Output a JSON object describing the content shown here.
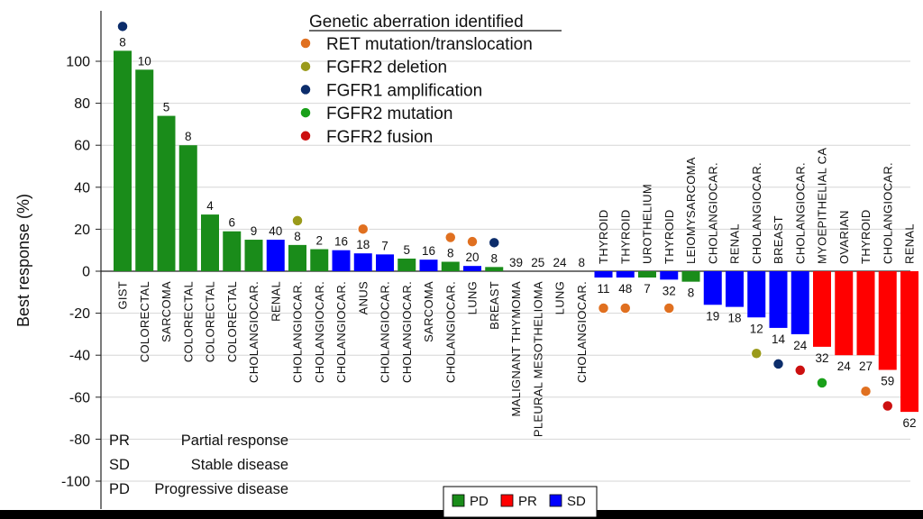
{
  "chart_data": {
    "type": "bar",
    "title": "",
    "xlabel": "",
    "ylabel": "Best response (%)",
    "ylim": [
      -110,
      115
    ],
    "yticks": [
      100,
      80,
      60,
      40,
      20,
      0,
      -20,
      -40,
      -60,
      -80,
      -100
    ],
    "grid": true,
    "colors": {
      "PD": "#1a8c1a",
      "PR": "#ff0000",
      "SD": "#0000ff"
    },
    "bars": [
      {
        "label": "GIST",
        "value": 105,
        "status": "PD",
        "count": "8",
        "marker": "fgfr1_amp"
      },
      {
        "label": "COLORECTAL",
        "value": 96,
        "status": "PD",
        "count": "10",
        "marker": ""
      },
      {
        "label": "SARCOMA",
        "value": 74,
        "status": "PD",
        "count": "5",
        "marker": ""
      },
      {
        "label": "COLORECTAL",
        "value": 60,
        "status": "PD",
        "count": "8",
        "marker": ""
      },
      {
        "label": "COLORECTAL",
        "value": 27,
        "status": "PD",
        "count": "4",
        "marker": ""
      },
      {
        "label": "COLORECTAL",
        "value": 19,
        "status": "PD",
        "count": "6",
        "marker": ""
      },
      {
        "label": "CHOLANGIOCAR.",
        "value": 15,
        "status": "PD",
        "count": "9",
        "marker": ""
      },
      {
        "label": "RENAL",
        "value": 15,
        "status": "SD",
        "count": "40",
        "marker": ""
      },
      {
        "label": "CHOLANGIOCAR.",
        "value": 12.5,
        "status": "PD",
        "count": "8",
        "marker": "fgfr2_del"
      },
      {
        "label": "CHOLANGIOCAR.",
        "value": 10.5,
        "status": "PD",
        "count": "2",
        "marker": ""
      },
      {
        "label": "CHOLANGIOCAR.",
        "value": 10,
        "status": "SD",
        "count": "16",
        "marker": ""
      },
      {
        "label": "ANUS",
        "value": 8.5,
        "status": "SD",
        "count": "18",
        "marker": "ret"
      },
      {
        "label": "CHOLANGIOCAR.",
        "value": 8,
        "status": "SD",
        "count": "7",
        "marker": ""
      },
      {
        "label": "CHOLANGIOCAR.",
        "value": 6,
        "status": "PD",
        "count": "5",
        "marker": ""
      },
      {
        "label": "SARCOMA",
        "value": 5.5,
        "status": "SD",
        "count": "16",
        "marker": ""
      },
      {
        "label": "CHOLANGIOCAR.",
        "value": 4.5,
        "status": "PD",
        "count": "8",
        "marker": "ret"
      },
      {
        "label": "LUNG",
        "value": 2.5,
        "status": "SD",
        "count": "20",
        "marker": "ret"
      },
      {
        "label": "BREAST",
        "value": 2,
        "status": "PD",
        "count": "8",
        "marker": "fgfr1_amp"
      },
      {
        "label": "MALIGNANT THYMOMA",
        "value": 0,
        "status": "PD",
        "count": "39",
        "marker": ""
      },
      {
        "label": "PLEURAL MESOTHELIOMA",
        "value": 0,
        "status": "PD",
        "count": "25",
        "marker": ""
      },
      {
        "label": "LUNG",
        "value": 0,
        "status": "PD",
        "count": "24",
        "marker": ""
      },
      {
        "label": "CHOLANGIOCAR.",
        "value": 0,
        "status": "PD",
        "count": "8",
        "marker": ""
      },
      {
        "label": "THYROID",
        "value": -3,
        "status": "SD",
        "count": "11",
        "marker": "ret"
      },
      {
        "label": "THYROID",
        "value": -3,
        "status": "SD",
        "count": "48",
        "marker": "ret"
      },
      {
        "label": "UROTHELIUM",
        "value": -3,
        "status": "PD",
        "count": "7",
        "marker": ""
      },
      {
        "label": "THYROID",
        "value": -4,
        "status": "SD",
        "count": "32",
        "marker": "ret"
      },
      {
        "label": "LEIOMYSARCOMA",
        "value": -5,
        "status": "PD",
        "count": "8",
        "marker": ""
      },
      {
        "label": "CHOLANGIOCAR.",
        "value": -16,
        "status": "SD",
        "count": "19",
        "marker": ""
      },
      {
        "label": "RENAL",
        "value": -17,
        "status": "SD",
        "count": "18",
        "marker": ""
      },
      {
        "label": "CHOLANGIOCAR.",
        "value": -22,
        "status": "SD",
        "count": "12",
        "marker": "fgfr2_del"
      },
      {
        "label": "BREAST",
        "value": -27,
        "status": "SD",
        "count": "14",
        "marker": "fgfr1_amp"
      },
      {
        "label": "CHOLANGIOCAR.",
        "value": -30,
        "status": "SD",
        "count": "24",
        "marker": "fgfr2_fusion"
      },
      {
        "label": "MYOEPITHELIAL CA",
        "value": -36,
        "status": "PR",
        "count": "32",
        "marker": "fgfr2_mut"
      },
      {
        "label": "OVARIAN",
        "value": -40,
        "status": "PR",
        "count": "24",
        "marker": ""
      },
      {
        "label": "THYROID",
        "value": -40,
        "status": "PR",
        "count": "27",
        "marker": "ret"
      },
      {
        "label": "CHOLANGIOCAR.",
        "value": -47,
        "status": "PR",
        "count": "59",
        "marker": "fgfr2_fusion"
      },
      {
        "label": "RENAL",
        "value": -67,
        "status": "PR",
        "count": "62",
        "marker": ""
      }
    ],
    "legend": {
      "title": "Genetic aberration identified",
      "items": [
        {
          "key": "ret",
          "label": "RET mutation/translocation",
          "color": "#e07020"
        },
        {
          "key": "fgfr2_del",
          "label": "FGFR2 deletion",
          "color": "#9a9a1a"
        },
        {
          "key": "fgfr1_amp",
          "label": "FGFR1 amplification",
          "color": "#0c2d6b"
        },
        {
          "key": "fgfr2_mut",
          "label": "FGFR2 mutation",
          "color": "#1aa01a"
        },
        {
          "key": "fgfr2_fusion",
          "label": "FGFR2 fusion",
          "color": "#cc1010"
        }
      ]
    },
    "abbreviations": [
      {
        "abbr": "PR",
        "text": "Partial response"
      },
      {
        "abbr": "SD",
        "text": "Stable disease"
      },
      {
        "abbr": "PD",
        "text": "Progressive disease"
      }
    ],
    "status_legend": [
      {
        "key": "PD",
        "label": "PD"
      },
      {
        "key": "PR",
        "label": "PR"
      },
      {
        "key": "SD",
        "label": "SD"
      }
    ]
  }
}
